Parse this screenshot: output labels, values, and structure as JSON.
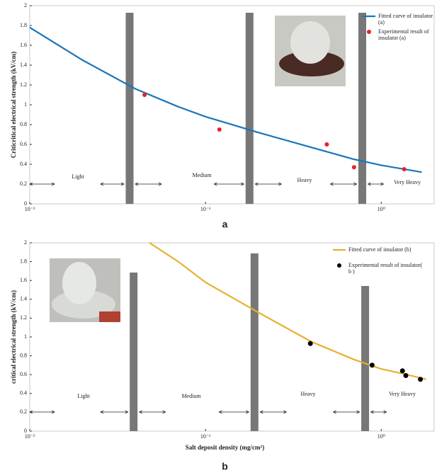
{
  "chart_data": [
    {
      "type": "line",
      "title": "a",
      "ylabel": "Criticritical electrical strength (kV/cm)",
      "xscale": "log",
      "xlim": [
        0.01,
        2
      ],
      "ylim": [
        0,
        2
      ],
      "xticks": [
        {
          "value": 0.01,
          "label": "10⁻²"
        },
        {
          "value": 0.1,
          "label": "10⁻¹"
        },
        {
          "value": 1,
          "label": "10⁰"
        }
      ],
      "yticks": [
        0,
        0.2,
        0.4,
        0.6,
        0.8,
        1,
        1.2,
        1.4,
        1.6,
        1.8,
        2
      ],
      "bands": [
        0.037,
        0.178,
        0.78
      ],
      "regions": [
        "Light",
        "Medium",
        "Heavy",
        "Very Heavy"
      ],
      "series": [
        {
          "name": "Fitted curve of insulator (a)",
          "color": "#1a75b8",
          "style": "line",
          "x": [
            0.01,
            0.02,
            0.04,
            0.07,
            0.1,
            0.2,
            0.4,
            0.7,
            1,
            1.7
          ],
          "values": [
            1.78,
            1.45,
            1.16,
            0.98,
            0.88,
            0.72,
            0.57,
            0.45,
            0.39,
            0.32
          ]
        },
        {
          "name": "Experimental result of insulator (a)",
          "color": "#e8202a",
          "style": "marker",
          "x": [
            0.045,
            0.12,
            0.49,
            0.7,
            1.35
          ],
          "values": [
            1.1,
            0.75,
            0.6,
            0.37,
            0.35
          ]
        }
      ]
    },
    {
      "type": "line",
      "title": "b",
      "xlabel": "Salt deposit density (mg/cm²)",
      "ylabel": "critical electrical strength (kV/cm)",
      "xscale": "log",
      "xlim": [
        0.01,
        2
      ],
      "ylim": [
        0,
        2
      ],
      "xticks": [
        {
          "value": 0.01,
          "label": "10⁻²"
        },
        {
          "value": 0.1,
          "label": "10⁻¹"
        },
        {
          "value": 1,
          "label": "10⁰"
        }
      ],
      "yticks": [
        0,
        0.2,
        0.4,
        0.6,
        0.8,
        1,
        1.2,
        1.4,
        1.6,
        1.8,
        2
      ],
      "bands": [
        0.039,
        0.19,
        0.81
      ],
      "regions": [
        "Light",
        "Medium",
        "Heavy",
        "Very Heavy"
      ],
      "series": [
        {
          "name": "Fitted curve of insulator (b)",
          "color": "#e8b030",
          "style": "line",
          "x": [
            0.048,
            0.07,
            0.1,
            0.2,
            0.4,
            0.7,
            1,
            1.4,
            1.8
          ],
          "values": [
            2.0,
            1.8,
            1.58,
            1.26,
            0.95,
            0.76,
            0.66,
            0.6,
            0.55
          ]
        },
        {
          "name": "Experimental result of insulator( b )",
          "color": "#000000",
          "style": "marker",
          "x": [
            0.395,
            0.887,
            1.32,
            1.38,
            1.67
          ],
          "values": [
            0.93,
            0.7,
            0.64,
            0.59,
            0.55
          ]
        }
      ]
    }
  ]
}
